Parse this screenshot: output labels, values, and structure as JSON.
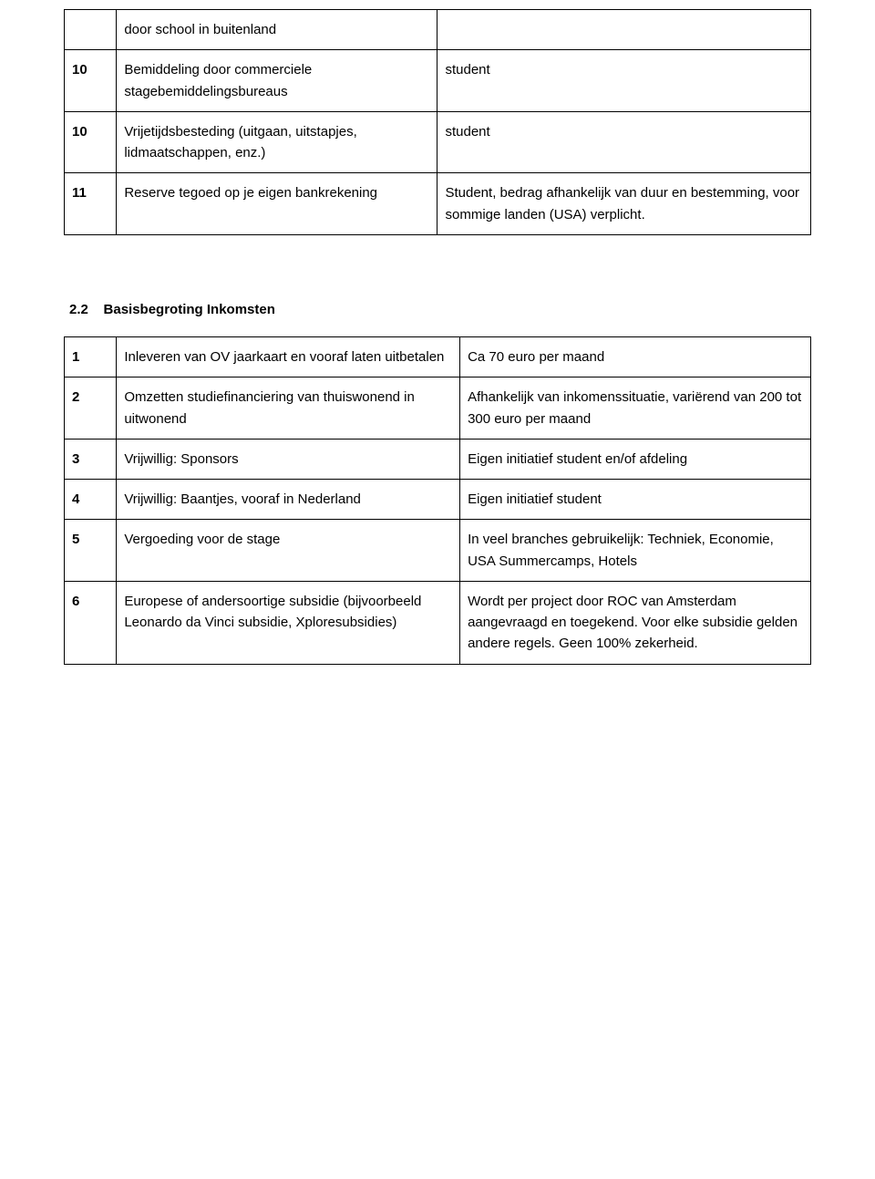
{
  "table1": {
    "columns": [
      {
        "class": "col-num"
      },
      {
        "class": "col-desc1"
      },
      {
        "class": "col-note1"
      }
    ],
    "rows": [
      {
        "num": "",
        "desc": "door school in buitenland",
        "note": ""
      },
      {
        "num": "10",
        "desc": "Bemiddeling door commerciele stagebemiddelingsbureaus",
        "note": "student"
      },
      {
        "num": "10",
        "desc": "Vrijetijdsbesteding (uitgaan, uitstapjes, lidmaatschappen, enz.)",
        "note": "student"
      },
      {
        "num": "11",
        "desc": "Reserve tegoed op je eigen bankrekening",
        "note": "Student, bedrag afhankelijk van duur en bestemming, voor sommige landen (USA) verplicht."
      }
    ]
  },
  "section_heading": "2.2    Basisbegroting Inkomsten",
  "table2": {
    "columns": [
      {
        "class": "col-num"
      },
      {
        "class": "col-desc2"
      },
      {
        "class": "col-note2"
      }
    ],
    "rows": [
      {
        "num": "1",
        "desc": "Inleveren van OV jaarkaart en vooraf laten uitbetalen",
        "note": "Ca 70 euro per maand"
      },
      {
        "num": "2",
        "desc": "Omzetten studiefinanciering van thuiswonend in uitwonend",
        "note": "Afhankelijk van inkomenssituatie, variërend van 200 tot 300 euro per maand"
      },
      {
        "num": "3",
        "desc": "Vrijwillig: Sponsors",
        "note": "Eigen initiatief student en/of afdeling"
      },
      {
        "num": "4",
        "desc": "Vrijwillig:  Baantjes, vooraf in Nederland",
        "note": "Eigen initiatief student"
      },
      {
        "num": "5",
        "desc": "Vergoeding voor de stage",
        "note": "In veel branches gebruikelijk: Techniek, Economie, USA Summercamps, Hotels"
      },
      {
        "num": "6",
        "desc": " Europese of andersoortige subsidie (bijvoorbeeld Leonardo da Vinci subsidie, Xploresubsidies)",
        "note": "Wordt per project door ROC van Amsterdam aangevraagd en toegekend. Voor elke subsidie gelden andere regels. Geen 100% zekerheid."
      }
    ]
  }
}
